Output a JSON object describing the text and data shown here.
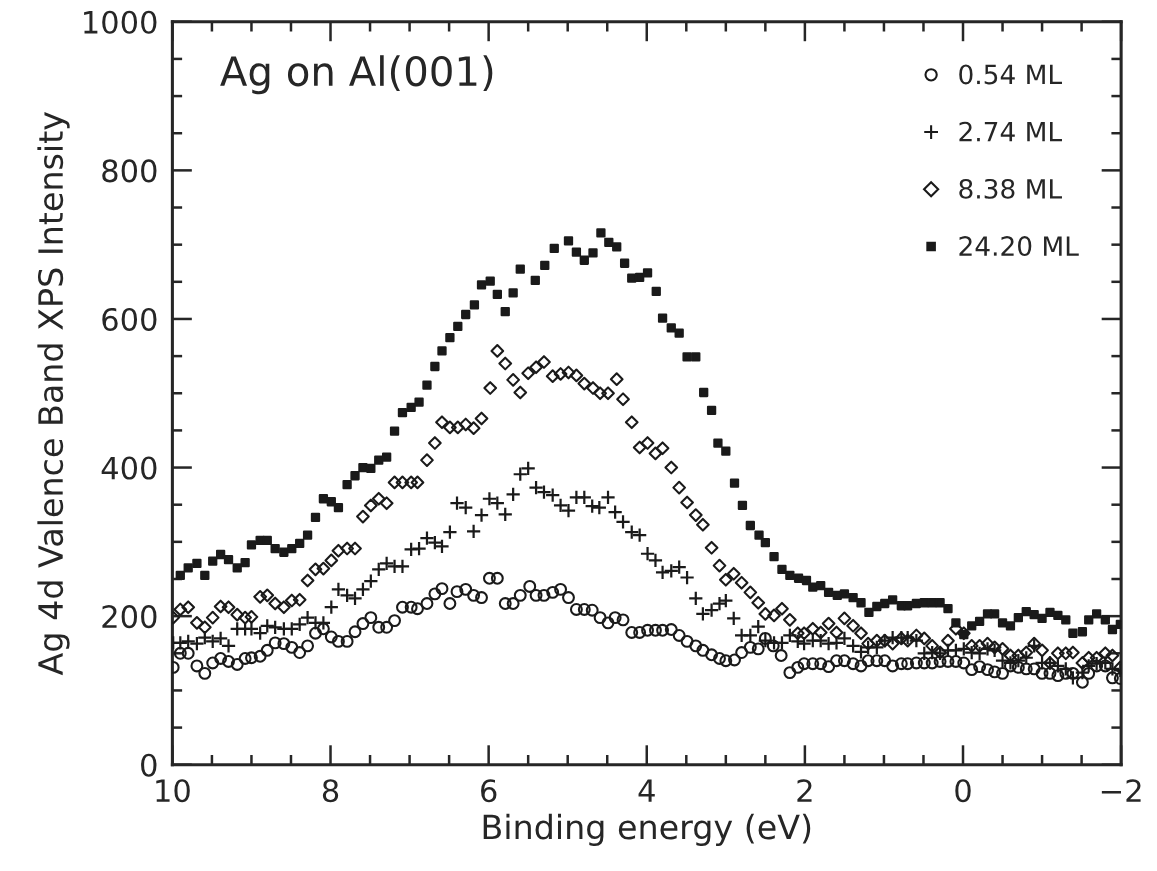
{
  "chart_data": {
    "type": "scatter",
    "xlabel": "Binding energy (eV)",
    "ylabel": "Ag 4d Valence Band XPS Intensity",
    "annotations": [
      "Ag on Al(001)"
    ],
    "xlim": [
      10,
      -2
    ],
    "xticks": [
      10,
      8,
      6,
      4,
      2,
      0,
      {
        "value": -2,
        "label": "−2"
      }
    ],
    "ylim": [
      0,
      1000
    ],
    "yticks": [
      0,
      200,
      400,
      600,
      800,
      1000
    ],
    "grid": false,
    "legend": "top right",
    "series": [
      {
        "name": "0.54 ML",
        "color": "#1a1a1a",
        "marker": "circle",
        "x": [
          9.99,
          9.9,
          9.8,
          9.69,
          9.59,
          9.49,
          9.39,
          9.29,
          9.18,
          9.08,
          9.0,
          8.89,
          8.8,
          8.7,
          8.59,
          8.49,
          8.39,
          8.29,
          8.19,
          8.09,
          7.99,
          7.9,
          7.79,
          7.69,
          7.59,
          7.49,
          7.39,
          7.29,
          7.19,
          7.09,
          6.98,
          6.9,
          6.78,
          6.68,
          6.59,
          6.49,
          6.4,
          6.29,
          6.19,
          6.09,
          5.99,
          5.89,
          5.79,
          5.69,
          5.6,
          5.48,
          5.4,
          5.3,
          5.19,
          5.09,
          4.99,
          4.89,
          4.79,
          4.69,
          4.59,
          4.49,
          4.4,
          4.3,
          4.19,
          4.09,
          3.99,
          3.89,
          3.8,
          3.69,
          3.59,
          3.49,
          3.38,
          3.29,
          3.18,
          3.08,
          3.0,
          2.89,
          2.8,
          2.69,
          2.59,
          2.5,
          2.4,
          2.3,
          2.19,
          2.09,
          2.01,
          1.9,
          1.8,
          1.7,
          1.6,
          1.5,
          1.39,
          1.29,
          1.2,
          1.09,
          0.99,
          0.89,
          0.78,
          0.7,
          0.59,
          0.49,
          0.39,
          0.29,
          0.19,
          0.09,
          -0.01,
          -0.11,
          -0.21,
          -0.31,
          -0.4,
          -0.5,
          -0.6,
          -0.7,
          -0.8,
          -0.9,
          -1.0,
          -1.1,
          -1.2,
          -1.3,
          -1.39,
          -1.51,
          -1.59,
          -1.69,
          -1.8,
          -1.89,
          -1.99
        ],
        "values": [
          131,
          150,
          150,
          133,
          123,
          137,
          143,
          139,
          135,
          143,
          144,
          146,
          154,
          164,
          163,
          158,
          151,
          160,
          177,
          183,
          172,
          166,
          166,
          179,
          190,
          198,
          185,
          185,
          194,
          212,
          212,
          210,
          217,
          230,
          237,
          217,
          233,
          236,
          228,
          225,
          251,
          251,
          217,
          217,
          228,
          240,
          228,
          228,
          232,
          236,
          225,
          209,
          209,
          208,
          198,
          191,
          198,
          195,
          178,
          178,
          181,
          181,
          181,
          182,
          174,
          166,
          160,
          154,
          148,
          143,
          140,
          141,
          151,
          158,
          156,
          170,
          160,
          147,
          124,
          131,
          136,
          136,
          136,
          132,
          140,
          140,
          136,
          133,
          140,
          140,
          140,
          133,
          136,
          136,
          137,
          137,
          137,
          139,
          139,
          139,
          137,
          128,
          132,
          128,
          125,
          123,
          133,
          131,
          129,
          129,
          123,
          123,
          120,
          123,
          123,
          111,
          123,
          133,
          133,
          117,
          116
        ]
      },
      {
        "name": "2.74 ML",
        "color": "#1a1a1a",
        "marker": "cross",
        "x": [
          9.99,
          9.9,
          9.8,
          9.69,
          9.59,
          9.49,
          9.39,
          9.29,
          9.18,
          9.08,
          9.0,
          8.89,
          8.8,
          8.7,
          8.59,
          8.49,
          8.39,
          8.29,
          8.19,
          8.09,
          7.99,
          7.9,
          7.79,
          7.69,
          7.59,
          7.49,
          7.39,
          7.29,
          7.19,
          7.09,
          6.98,
          6.88,
          6.78,
          6.68,
          6.59,
          6.49,
          6.4,
          6.29,
          6.19,
          6.09,
          5.99,
          5.89,
          5.79,
          5.69,
          5.6,
          5.5,
          5.4,
          5.3,
          5.19,
          5.09,
          4.99,
          4.89,
          4.79,
          4.69,
          4.6,
          4.49,
          4.4,
          4.3,
          4.19,
          4.09,
          3.99,
          3.89,
          3.8,
          3.69,
          3.59,
          3.49,
          3.38,
          3.29,
          3.18,
          3.08,
          3.0,
          2.9,
          2.8,
          2.69,
          2.59,
          2.5,
          2.39,
          2.29,
          2.19,
          2.09,
          2.01,
          1.9,
          1.8,
          1.7,
          1.6,
          1.5,
          1.39,
          1.29,
          1.2,
          1.09,
          0.99,
          0.89,
          0.78,
          0.7,
          0.59,
          0.49,
          0.39,
          0.29,
          0.19,
          0.09,
          -0.01,
          -0.11,
          -0.21,
          -0.31,
          -0.4,
          -0.5,
          -0.6,
          -0.7,
          -0.8,
          -0.9,
          -1.0,
          -1.1,
          -1.2,
          -1.3,
          -1.39,
          -1.51,
          -1.59,
          -1.69,
          -1.8,
          -1.89,
          -1.99
        ],
        "values": [
          164,
          164,
          166,
          163,
          171,
          166,
          170,
          160,
          183,
          183,
          183,
          177,
          187,
          185,
          183,
          183,
          189,
          198,
          191,
          191,
          212,
          236,
          228,
          224,
          236,
          247,
          263,
          271,
          267,
          267,
          290,
          291,
          305,
          299,
          294,
          313,
          352,
          346,
          314,
          336,
          358,
          352,
          337,
          364,
          391,
          399,
          373,
          367,
          363,
          349,
          342,
          360,
          360,
          348,
          346,
          360,
          340,
          327,
          313,
          309,
          284,
          275,
          259,
          261,
          266,
          252,
          224,
          203,
          208,
          217,
          221,
          197,
          174,
          174,
          186,
          167,
          164,
          164,
          174,
          166,
          163,
          167,
          167,
          163,
          164,
          170,
          160,
          152,
          158,
          158,
          167,
          171,
          171,
          171,
          167,
          150,
          151,
          150,
          154,
          154,
          156,
          151,
          150,
          156,
          154,
          140,
          137,
          140,
          144,
          160,
          137,
          137,
          133,
          129,
          117,
          124,
          133,
          136,
          137,
          129,
          127
        ]
      },
      {
        "name": "8.38 ML",
        "color": "#1a1a1a",
        "marker": "diamond",
        "x": [
          9.99,
          9.9,
          9.8,
          9.69,
          9.59,
          9.49,
          9.39,
          9.29,
          9.18,
          9.08,
          9.0,
          8.89,
          8.8,
          8.7,
          8.59,
          8.49,
          8.39,
          8.29,
          8.19,
          8.09,
          7.99,
          7.9,
          7.79,
          7.69,
          7.59,
          7.49,
          7.39,
          7.29,
          7.19,
          7.09,
          6.98,
          6.9,
          6.78,
          6.68,
          6.59,
          6.49,
          6.39,
          6.29,
          6.19,
          6.09,
          5.98,
          5.89,
          5.79,
          5.69,
          5.6,
          5.5,
          5.4,
          5.3,
          5.19,
          5.09,
          4.99,
          4.89,
          4.79,
          4.68,
          4.59,
          4.49,
          4.38,
          4.3,
          4.19,
          4.09,
          3.99,
          3.89,
          3.8,
          3.69,
          3.59,
          3.49,
          3.38,
          3.29,
          3.18,
          3.08,
          3.0,
          2.9,
          2.8,
          2.69,
          2.59,
          2.5,
          2.39,
          2.29,
          2.19,
          2.09,
          2.01,
          1.9,
          1.8,
          1.7,
          1.6,
          1.5,
          1.39,
          1.29,
          1.2,
          1.09,
          0.99,
          0.89,
          0.78,
          0.7,
          0.59,
          0.49,
          0.39,
          0.29,
          0.19,
          0.09,
          -0.01,
          -0.11,
          -0.21,
          -0.31,
          -0.4,
          -0.5,
          -0.6,
          -0.7,
          -0.8,
          -0.9,
          -1.0,
          -1.1,
          -1.2,
          -1.3,
          -1.39,
          -1.51,
          -1.59,
          -1.69,
          -1.8,
          -1.89,
          -1.99
        ],
        "values": [
          198,
          209,
          212,
          191,
          185,
          198,
          213,
          212,
          202,
          198,
          199,
          226,
          228,
          217,
          212,
          221,
          222,
          248,
          263,
          264,
          275,
          288,
          291,
          291,
          334,
          349,
          358,
          352,
          380,
          380,
          380,
          380,
          410,
          433,
          461,
          454,
          454,
          458,
          453,
          466,
          507,
          557,
          540,
          518,
          501,
          527,
          535,
          542,
          523,
          526,
          528,
          524,
          513,
          507,
          500,
          500,
          519,
          492,
          461,
          427,
          433,
          419,
          426,
          400,
          373,
          353,
          336,
          323,
          292,
          268,
          249,
          257,
          245,
          232,
          218,
          203,
          201,
          210,
          195,
          177,
          177,
          183,
          178,
          190,
          178,
          197,
          187,
          177,
          163,
          167,
          167,
          163,
          170,
          167,
          174,
          170,
          160,
          151,
          167,
          183,
          177,
          160,
          160,
          163,
          158,
          156,
          147,
          147,
          151,
          163,
          154,
          137,
          150,
          150,
          151,
          137,
          144,
          144,
          150,
          147,
          131
        ]
      },
      {
        "name": "24.20 ML",
        "color": "#1a1a1a",
        "marker": "square",
        "x": [
          9.9,
          9.8,
          9.69,
          9.59,
          9.49,
          9.39,
          9.29,
          9.18,
          9.08,
          9.0,
          8.89,
          8.8,
          8.7,
          8.59,
          8.49,
          8.39,
          8.29,
          8.19,
          8.09,
          7.99,
          7.9,
          7.79,
          7.69,
          7.59,
          7.49,
          7.39,
          7.29,
          7.19,
          7.09,
          6.98,
          6.88,
          6.78,
          6.68,
          6.59,
          6.49,
          6.39,
          6.29,
          6.18,
          6.09,
          5.98,
          5.89,
          5.79,
          5.69,
          5.6,
          5.41,
          5.29,
          5.17,
          4.99,
          4.89,
          4.79,
          4.68,
          4.58,
          4.48,
          4.38,
          4.28,
          4.19,
          4.09,
          3.99,
          3.88,
          3.8,
          3.69,
          3.59,
          3.49,
          3.38,
          3.28,
          3.18,
          3.1,
          3.0,
          2.89,
          2.79,
          2.69,
          2.58,
          2.5,
          2.39,
          2.29,
          2.19,
          2.08,
          1.98,
          1.9,
          1.8,
          1.7,
          1.59,
          1.5,
          1.39,
          1.29,
          1.19,
          1.09,
          0.99,
          0.89,
          0.78,
          0.7,
          0.59,
          0.49,
          0.39,
          0.29,
          0.19,
          0.09,
          -0.01,
          -0.11,
          -0.21,
          -0.31,
          -0.4,
          -0.5,
          -0.6,
          -0.7,
          -0.8,
          -0.9,
          -1.0,
          -1.1,
          -1.2,
          -1.3,
          -1.39,
          -1.51,
          -1.59,
          -1.69,
          -1.8,
          -1.89,
          -1.99
        ],
        "values": [
          255,
          265,
          271,
          255,
          274,
          283,
          276,
          265,
          272,
          296,
          302,
          302,
          291,
          286,
          291,
          298,
          309,
          333,
          358,
          354,
          346,
          377,
          389,
          400,
          399,
          410,
          414,
          449,
          474,
          481,
          488,
          511,
          536,
          557,
          575,
          590,
          606,
          619,
          646,
          651,
          633,
          610,
          635,
          667,
          652,
          672,
          695,
          705,
          690,
          679,
          689,
          716,
          703,
          697,
          675,
          655,
          656,
          662,
          637,
          601,
          588,
          581,
          549,
          549,
          501,
          477,
          433,
          422,
          379,
          349,
          322,
          309,
          299,
          280,
          263,
          255,
          251,
          248,
          239,
          241,
          232,
          228,
          230,
          225,
          218,
          205,
          213,
          217,
          222,
          214,
          214,
          217,
          218,
          218,
          218,
          210,
          191,
          175,
          187,
          193,
          203,
          203,
          191,
          187,
          198,
          206,
          202,
          197,
          205,
          201,
          195,
          177,
          179,
          195,
          203,
          195,
          182,
          189
        ]
      }
    ]
  }
}
